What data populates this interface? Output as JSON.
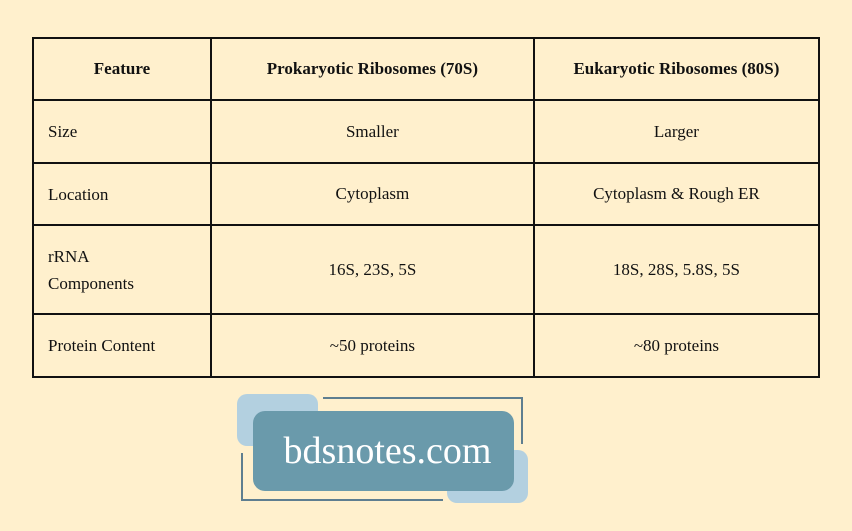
{
  "table": {
    "headers": [
      "Feature",
      "Prokaryotic Ribosomes (70S)",
      "Eukaryotic Ribosomes (80S)"
    ],
    "rows": [
      [
        "Size",
        "Smaller",
        "Larger"
      ],
      [
        "Location",
        "Cytoplasm",
        "Cytoplasm & Rough ER"
      ],
      [
        "rRNA Components",
        "16S, 23S, 5S",
        "18S, 28S, 5.8S, 5S"
      ],
      [
        "Protein Content",
        "~50 proteins",
        "~80 proteins"
      ]
    ]
  },
  "watermark": {
    "text": "bdsnotes.com",
    "colors": {
      "box": "#6A9AAB",
      "accent": "#B3D0E0"
    }
  }
}
